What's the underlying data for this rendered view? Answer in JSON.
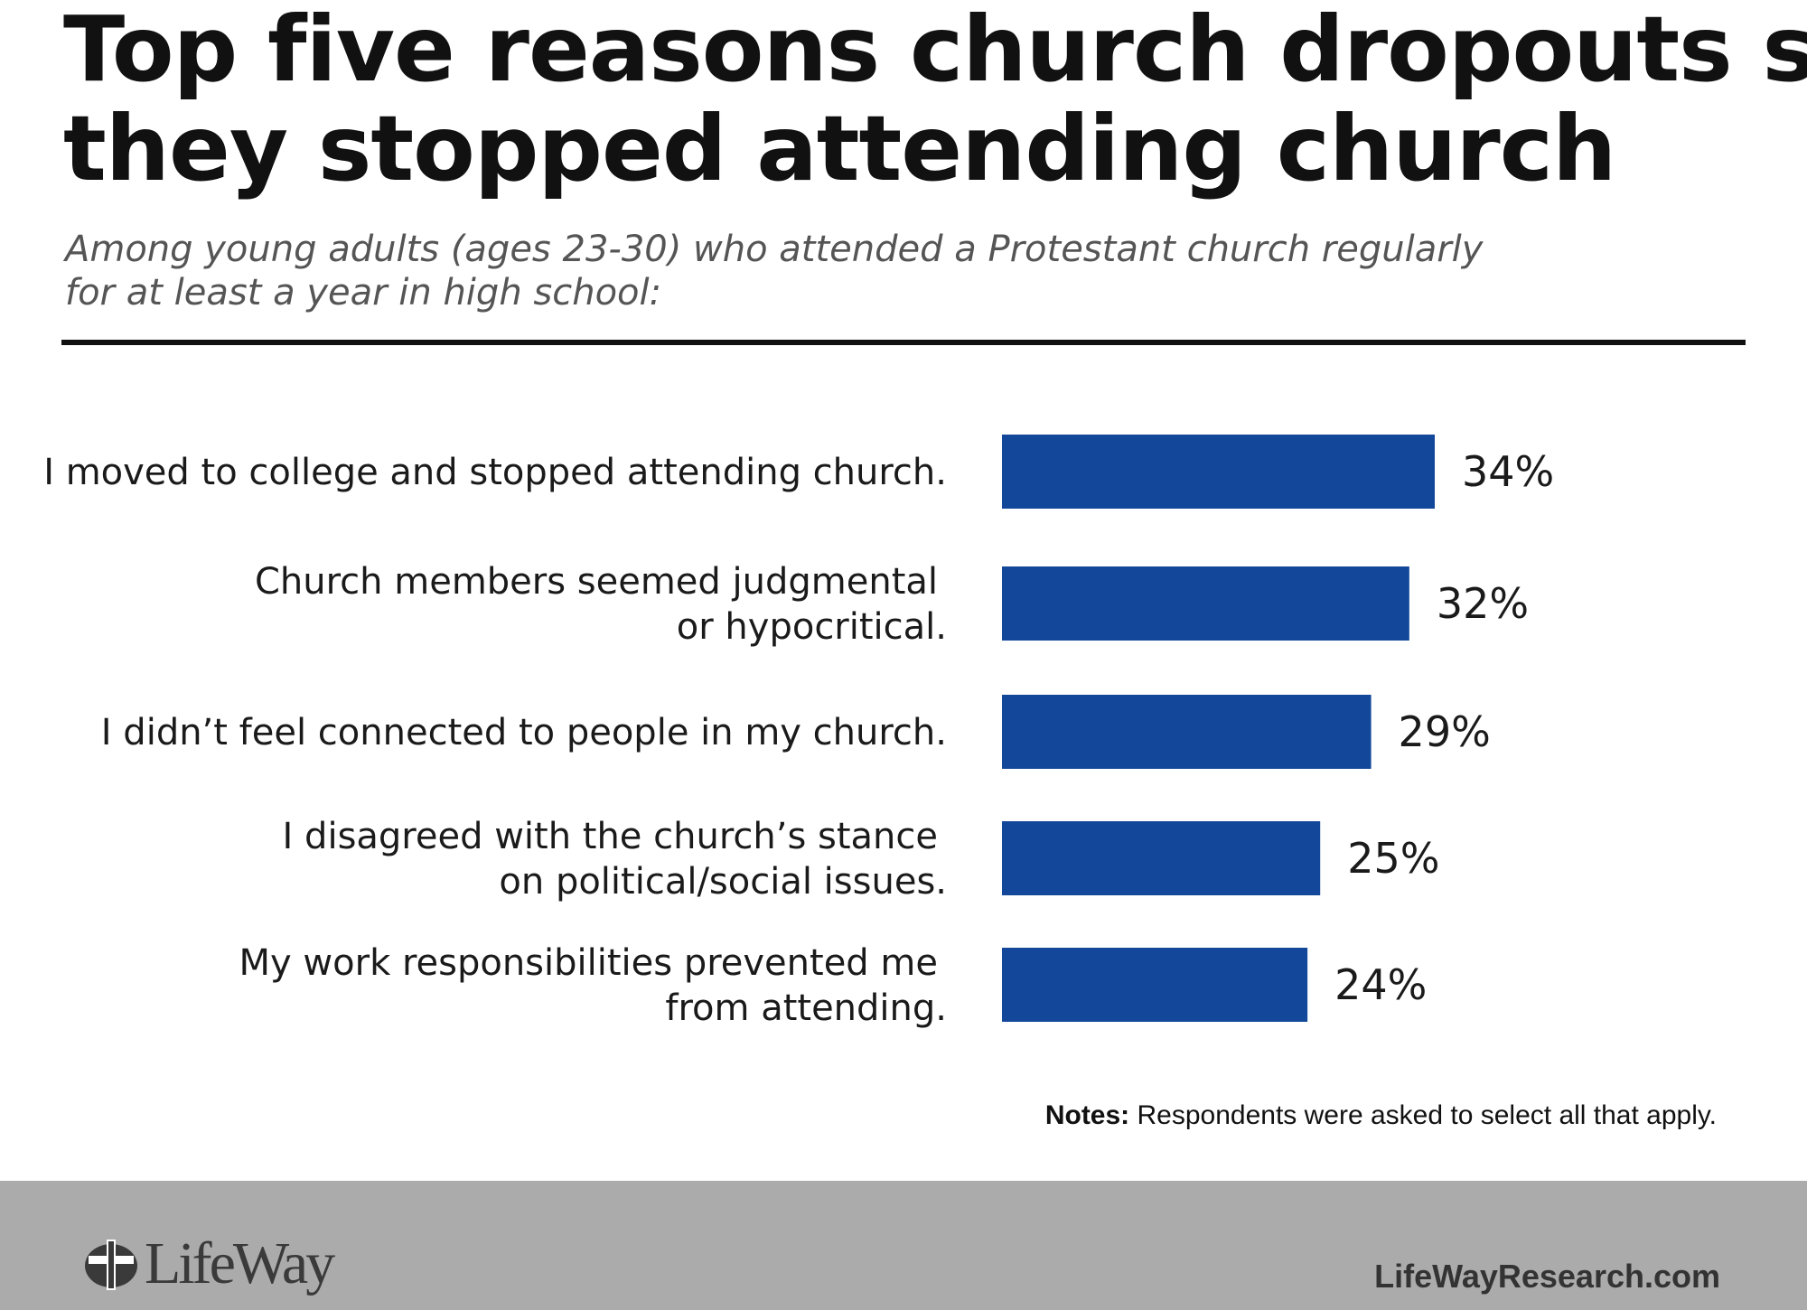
{
  "header": {
    "title_lines": [
      "Top five reasons church dropouts say",
      "they stopped attending church"
    ],
    "subtitle_lines": [
      "Among young adults (ages 23-30) who attended a Protestant church regularly",
      "for at least a year in high school:"
    ]
  },
  "chart_data": {
    "type": "bar",
    "orientation": "horizontal",
    "title": "Top five reasons church dropouts say they stopped attending church",
    "subtitle": "Among young adults (ages 23-30) who attended a Protestant church regularly for at least a year in high school:",
    "categories": [
      [
        "I moved to college and stopped attending church."
      ],
      [
        "Church members seemed judgmental",
        "or hypocritical."
      ],
      [
        "I didn’t feel connected to people in my church."
      ],
      [
        "I disagreed with the church’s stance",
        "on political/social issues."
      ],
      [
        "My work responsibilities prevented me",
        "from attending."
      ]
    ],
    "values": [
      34,
      32,
      29,
      25,
      24
    ],
    "value_labels": [
      "34%",
      "32%",
      "29%",
      "25%",
      "24%"
    ],
    "unit": "%",
    "bar_color": "#12479a",
    "xlim": [
      0,
      34
    ],
    "grid": false,
    "legend": "none"
  },
  "notes": {
    "label": "Notes:",
    "text": " Respondents were asked to select all that apply."
  },
  "footer": {
    "logo_text": "LifeWay",
    "site": "LifeWayResearch.com",
    "background": "#ababab"
  }
}
